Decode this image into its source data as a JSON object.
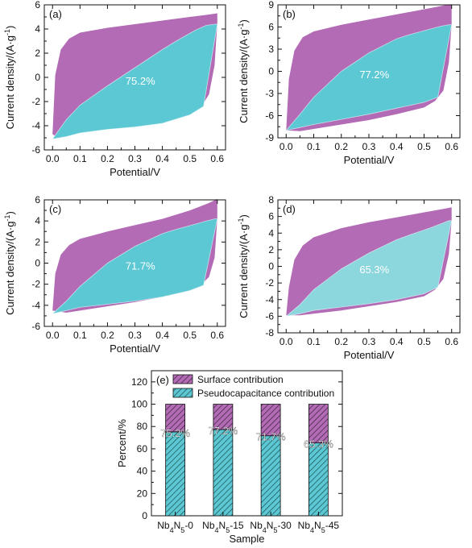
{
  "colors": {
    "surface": "#b26bb4",
    "pseudo": "#5cc8d3",
    "pseudo_light": "#8cd6de",
    "axis": "#111111"
  },
  "chart_data": [
    {
      "id": "a",
      "type": "area",
      "panel_label": "(a)",
      "xlabel": "Potential/V",
      "ylabel": "Current density/(A·g⁻¹)",
      "xlim": [
        0,
        0.6
      ],
      "ylim": [
        -6,
        6
      ],
      "xticks": [
        0.0,
        0.1,
        0.2,
        0.3,
        0.4,
        0.5,
        0.6
      ],
      "yticks": [
        -6,
        -4,
        -2,
        0,
        2,
        4,
        6
      ],
      "annotation": "75.2%",
      "series": [
        {
          "fill": "surface",
          "x": [
            0.0,
            0.01,
            0.03,
            0.06,
            0.1,
            0.2,
            0.3,
            0.4,
            0.5,
            0.57,
            0.6,
            0.6,
            0.59,
            0.57,
            0.54,
            0.5,
            0.4,
            0.3,
            0.2,
            0.1,
            0.05,
            0.02,
            0.0
          ],
          "y": [
            -4.7,
            0.2,
            2.3,
            3.2,
            3.7,
            4.1,
            4.4,
            4.7,
            5.0,
            5.2,
            5.3,
            4.5,
            1.0,
            -1.4,
            -2.5,
            -3.1,
            -3.6,
            -3.9,
            -4.2,
            -4.6,
            -4.8,
            -5.0,
            -4.7
          ]
        },
        {
          "fill": "pseudo",
          "x": [
            0.0,
            0.05,
            0.1,
            0.2,
            0.3,
            0.4,
            0.5,
            0.55,
            0.6,
            0.59,
            0.56,
            0.52,
            0.45,
            0.4,
            0.3,
            0.2,
            0.1,
            0.05,
            0.0
          ],
          "y": [
            -5.1,
            -4.9,
            -4.6,
            -4.3,
            -4.1,
            -3.8,
            -3.1,
            -2.4,
            4.4,
            4.4,
            4.3,
            3.9,
            3.0,
            2.3,
            0.8,
            -0.7,
            -2.3,
            -3.5,
            -5.1
          ]
        }
      ]
    },
    {
      "id": "b",
      "type": "area",
      "panel_label": "(b)",
      "xlabel": "Potential/V",
      "ylabel": "Current density/(A·g⁻¹)",
      "xlim": [
        0,
        0.6
      ],
      "ylim": [
        -9,
        9
      ],
      "xticks": [
        0.0,
        0.1,
        0.2,
        0.3,
        0.4,
        0.5,
        0.6
      ],
      "yticks": [
        -9,
        -6,
        -3,
        0,
        3,
        6,
        9
      ],
      "annotation": "77.2%",
      "series": [
        {
          "fill": "surface",
          "x": [
            0.0,
            0.01,
            0.03,
            0.06,
            0.1,
            0.2,
            0.3,
            0.4,
            0.5,
            0.57,
            0.6,
            0.6,
            0.59,
            0.57,
            0.54,
            0.5,
            0.4,
            0.3,
            0.2,
            0.1,
            0.05,
            0.0
          ],
          "y": [
            -8.0,
            -1.0,
            2.8,
            4.6,
            5.4,
            6.3,
            7.0,
            7.7,
            8.4,
            8.9,
            9.1,
            6.4,
            1.2,
            -2.6,
            -4.0,
            -4.9,
            -5.8,
            -6.6,
            -7.2,
            -7.8,
            -8.1,
            -8.0
          ]
        },
        {
          "fill": "pseudo",
          "x": [
            0.0,
            0.05,
            0.1,
            0.2,
            0.3,
            0.4,
            0.5,
            0.55,
            0.6,
            0.59,
            0.56,
            0.52,
            0.45,
            0.4,
            0.3,
            0.2,
            0.1,
            0.05,
            0.0
          ],
          "y": [
            -8.0,
            -7.6,
            -7.2,
            -6.5,
            -5.8,
            -5.0,
            -4.2,
            -3.5,
            6.3,
            6.3,
            6.1,
            5.7,
            5.0,
            4.4,
            2.5,
            0.0,
            -3.5,
            -5.8,
            -8.0
          ]
        }
      ]
    },
    {
      "id": "c",
      "type": "area",
      "panel_label": "(c)",
      "xlabel": "Potential/V",
      "ylabel": "Current density/(A·g⁻¹)",
      "xlim": [
        0,
        0.6
      ],
      "ylim": [
        -6,
        6
      ],
      "xticks": [
        0.0,
        0.1,
        0.2,
        0.3,
        0.4,
        0.5,
        0.6
      ],
      "yticks": [
        -6,
        -4,
        -2,
        0,
        2,
        4,
        6
      ],
      "annotation": "71.7%",
      "series": [
        {
          "fill": "surface",
          "x": [
            0.0,
            0.01,
            0.03,
            0.06,
            0.1,
            0.2,
            0.3,
            0.4,
            0.5,
            0.57,
            0.6,
            0.6,
            0.59,
            0.57,
            0.54,
            0.5,
            0.4,
            0.3,
            0.2,
            0.1,
            0.05,
            0.0
          ],
          "y": [
            -4.5,
            -1.0,
            0.8,
            1.7,
            2.3,
            3.0,
            3.6,
            4.2,
            5.0,
            5.7,
            6.1,
            4.2,
            0.5,
            -1.3,
            -2.1,
            -2.6,
            -3.2,
            -3.7,
            -4.1,
            -4.5,
            -4.7,
            -4.5
          ]
        },
        {
          "fill": "pseudo",
          "x": [
            0.0,
            0.05,
            0.1,
            0.2,
            0.3,
            0.4,
            0.5,
            0.55,
            0.6,
            0.59,
            0.56,
            0.52,
            0.45,
            0.4,
            0.3,
            0.2,
            0.1,
            0.05,
            0.0
          ],
          "y": [
            -4.8,
            -4.5,
            -4.2,
            -3.9,
            -3.6,
            -3.2,
            -2.6,
            -2.1,
            4.2,
            4.2,
            4.0,
            3.7,
            3.2,
            2.8,
            1.6,
            0.0,
            -2.2,
            -3.6,
            -4.8
          ]
        }
      ]
    },
    {
      "id": "d",
      "type": "area",
      "panel_label": "(d)",
      "xlabel": "Potential/V",
      "ylabel": "Current density/(A·g⁻¹)",
      "xlim": [
        0,
        0.6
      ],
      "ylim": [
        -8,
        8
      ],
      "xticks": [
        0.0,
        0.1,
        0.2,
        0.3,
        0.4,
        0.5,
        0.6
      ],
      "yticks": [
        -8,
        -6,
        -4,
        -2,
        0,
        2,
        4,
        6,
        8
      ],
      "annotation": "65.3%",
      "series": [
        {
          "fill": "surface",
          "x": [
            0.0,
            0.01,
            0.03,
            0.06,
            0.1,
            0.2,
            0.3,
            0.4,
            0.5,
            0.57,
            0.6,
            0.6,
            0.59,
            0.57,
            0.54,
            0.5,
            0.4,
            0.3,
            0.2,
            0.1,
            0.05,
            0.0
          ],
          "y": [
            -5.9,
            -2.5,
            0.8,
            2.5,
            3.5,
            4.6,
            5.3,
            5.9,
            6.5,
            6.9,
            7.1,
            5.5,
            1.5,
            -1.5,
            -2.8,
            -3.6,
            -4.3,
            -4.8,
            -5.3,
            -5.7,
            -5.9,
            -5.9
          ]
        },
        {
          "fill": "pseudo_light",
          "x": [
            0.0,
            0.05,
            0.1,
            0.2,
            0.3,
            0.4,
            0.5,
            0.55,
            0.6,
            0.59,
            0.56,
            0.52,
            0.45,
            0.4,
            0.3,
            0.2,
            0.1,
            0.05,
            0.0
          ],
          "y": [
            -6.0,
            -5.7,
            -5.3,
            -4.9,
            -4.5,
            -4.0,
            -3.3,
            -2.5,
            5.5,
            5.5,
            5.1,
            4.6,
            3.8,
            3.2,
            1.6,
            -0.3,
            -2.8,
            -4.6,
            -6.0
          ]
        }
      ]
    },
    {
      "id": "e",
      "type": "bar",
      "panel_label": "(e)",
      "xlabel": "Sample",
      "ylabel": "Percent/%",
      "ylim": [
        0,
        130
      ],
      "yticks": [
        0,
        20,
        40,
        60,
        80,
        100,
        120
      ],
      "legend_position": "top-right",
      "categories": [
        {
          "pre": "Nb",
          "s1": "4",
          "mid": "N",
          "s2": "5",
          "post": "-0"
        },
        {
          "pre": "Nb",
          "s1": "4",
          "mid": "N",
          "s2": "5",
          "post": "-15"
        },
        {
          "pre": "Nb",
          "s1": "4",
          "mid": "N",
          "s2": "5",
          "post": "-30"
        },
        {
          "pre": "Nb",
          "s1": "4",
          "mid": "N",
          "s2": "5",
          "post": "-45"
        }
      ],
      "series": [
        {
          "name": "Pseudocapacitance contribution",
          "fill": "pseudo",
          "values": [
            75.2,
            77.2,
            71.7,
            65.3
          ]
        },
        {
          "name": "Surface contribution",
          "fill": "surface",
          "values": [
            24.8,
            22.8,
            28.3,
            34.7
          ]
        }
      ],
      "data_labels": [
        "75.2%",
        "77.2%",
        "71.7%",
        "65.3%"
      ]
    }
  ]
}
